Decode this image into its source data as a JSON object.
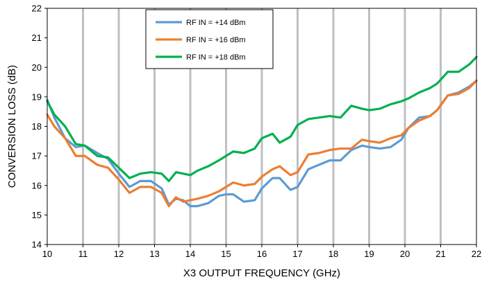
{
  "chart_data": {
    "type": "line",
    "xlabel": "X3 OUTPUT FREQUENCY (GHz)",
    "ylabel": "CONVERSION LOSS (dB)",
    "xlim": [
      10,
      22
    ],
    "ylim": [
      14,
      22
    ],
    "xticks": [
      10,
      11,
      12,
      13,
      14,
      15,
      16,
      17,
      18,
      19,
      20,
      21,
      22
    ],
    "yticks": [
      14,
      15,
      16,
      17,
      18,
      19,
      20,
      21,
      22
    ],
    "grid": "vertical",
    "legend_position": "top-center",
    "series": [
      {
        "name": "RF IN = +14 dBm",
        "color": "#5b9bd5",
        "x": [
          10,
          10.2,
          10.5,
          10.8,
          11.05,
          11.4,
          11.7,
          12.0,
          12.3,
          12.6,
          12.9,
          13.2,
          13.4,
          13.6,
          13.8,
          14.0,
          14.2,
          14.5,
          14.8,
          15.0,
          15.2,
          15.5,
          15.8,
          16.0,
          16.3,
          16.5,
          16.8,
          17.0,
          17.3,
          17.6,
          17.9,
          18.2,
          18.5,
          18.8,
          19.0,
          19.3,
          19.6,
          19.9,
          20.1,
          20.4,
          20.7,
          20.9,
          21.2,
          21.5,
          21.8,
          22.0
        ],
        "values": [
          18.9,
          18.3,
          17.6,
          17.3,
          17.35,
          17.1,
          16.9,
          16.4,
          15.95,
          16.15,
          16.15,
          15.9,
          15.35,
          15.55,
          15.5,
          15.3,
          15.3,
          15.4,
          15.65,
          15.7,
          15.7,
          15.45,
          15.5,
          15.9,
          16.25,
          16.25,
          15.85,
          15.95,
          16.55,
          16.7,
          16.85,
          16.85,
          17.2,
          17.35,
          17.3,
          17.25,
          17.3,
          17.55,
          17.95,
          18.3,
          18.35,
          18.55,
          19.05,
          19.15,
          19.35,
          19.55
        ]
      },
      {
        "name": "RF IN = +16 dBm",
        "color": "#ed7d31",
        "x": [
          10,
          10.2,
          10.5,
          10.8,
          11.05,
          11.4,
          11.7,
          12.0,
          12.3,
          12.6,
          12.9,
          13.2,
          13.4,
          13.6,
          13.8,
          14.0,
          14.2,
          14.5,
          14.8,
          15.0,
          15.2,
          15.5,
          15.8,
          16.0,
          16.3,
          16.5,
          16.8,
          17.0,
          17.3,
          17.6,
          17.9,
          18.2,
          18.5,
          18.8,
          19.0,
          19.3,
          19.6,
          19.9,
          20.1,
          20.4,
          20.7,
          20.9,
          21.2,
          21.5,
          21.8,
          22.0
        ],
        "values": [
          18.4,
          18.0,
          17.6,
          17.0,
          17.0,
          16.7,
          16.6,
          16.2,
          15.75,
          15.95,
          15.95,
          15.75,
          15.3,
          15.6,
          15.45,
          15.5,
          15.55,
          15.65,
          15.8,
          15.95,
          16.1,
          16.0,
          16.05,
          16.3,
          16.55,
          16.65,
          16.35,
          16.45,
          17.05,
          17.1,
          17.2,
          17.25,
          17.25,
          17.55,
          17.5,
          17.45,
          17.6,
          17.7,
          17.95,
          18.2,
          18.35,
          18.55,
          19.05,
          19.1,
          19.3,
          19.55
        ]
      },
      {
        "name": "RF IN = +18 dBm",
        "color": "#00b050",
        "x": [
          10,
          10.2,
          10.5,
          10.8,
          11.05,
          11.4,
          11.7,
          12.0,
          12.3,
          12.6,
          12.9,
          13.2,
          13.4,
          13.6,
          13.8,
          14.0,
          14.2,
          14.5,
          14.8,
          15.0,
          15.2,
          15.5,
          15.8,
          16.0,
          16.3,
          16.5,
          16.8,
          17.0,
          17.3,
          17.6,
          17.9,
          18.2,
          18.5,
          18.8,
          19.0,
          19.3,
          19.6,
          19.9,
          20.1,
          20.4,
          20.7,
          20.9,
          21.2,
          21.5,
          21.8,
          22.0
        ],
        "values": [
          18.85,
          18.4,
          18.0,
          17.4,
          17.35,
          17.0,
          16.95,
          16.6,
          16.25,
          16.4,
          16.45,
          16.4,
          16.15,
          16.45,
          16.4,
          16.35,
          16.5,
          16.65,
          16.85,
          17.0,
          17.15,
          17.1,
          17.25,
          17.6,
          17.75,
          17.45,
          17.65,
          18.05,
          18.25,
          18.3,
          18.35,
          18.3,
          18.7,
          18.6,
          18.55,
          18.6,
          18.75,
          18.85,
          18.95,
          19.15,
          19.3,
          19.45,
          19.85,
          19.85,
          20.1,
          20.35
        ]
      }
    ]
  }
}
